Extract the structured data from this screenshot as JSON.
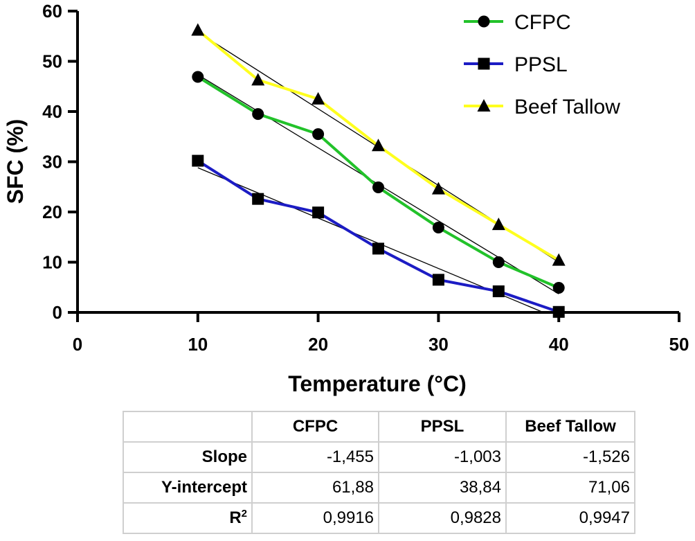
{
  "chart_data": {
    "type": "line",
    "xlabel": "Temperature (°C)",
    "ylabel": "SFC (%)",
    "xlim": [
      0,
      50
    ],
    "ylim": [
      0,
      60
    ],
    "xticks": [
      0,
      10,
      20,
      30,
      40,
      50
    ],
    "yticks": [
      0,
      10,
      20,
      30,
      40,
      50,
      60
    ],
    "grid": false,
    "legend_position": "top-right",
    "x": [
      10,
      15,
      20,
      25,
      30,
      35,
      40
    ],
    "series": [
      {
        "name": "CFPC",
        "marker": "circle",
        "color": "#22c22a",
        "values": [
          46.9,
          39.5,
          35.5,
          24.9,
          16.9,
          10.0,
          4.9
        ],
        "fit": {
          "slope": -1.455,
          "intercept": 61.88
        }
      },
      {
        "name": "PPSL",
        "marker": "square",
        "color": "#1c1cc4",
        "values": [
          30.2,
          22.6,
          19.9,
          12.7,
          6.5,
          4.2,
          0.1
        ],
        "fit": {
          "slope": -1.003,
          "intercept": 38.84
        }
      },
      {
        "name": "Beef Tallow",
        "marker": "triangle",
        "color": "#ffff1e",
        "values": [
          56.2,
          46.3,
          42.5,
          33.2,
          24.6,
          17.5,
          10.4
        ],
        "fit": {
          "slope": -1.526,
          "intercept": 71.06
        }
      }
    ]
  },
  "table": {
    "columns": [
      "",
      "CFPC",
      "PPSL",
      "Beef Tallow"
    ],
    "rows": [
      {
        "label": "Slope",
        "values": [
          "-1,455",
          "-1,003",
          "-1,526"
        ]
      },
      {
        "label": "Y-intercept",
        "values": [
          "61,88",
          "38,84",
          "71,06"
        ]
      },
      {
        "label": "R",
        "sup": "2",
        "values": [
          "0,9916",
          "0,9828",
          "0,9947"
        ]
      }
    ]
  }
}
